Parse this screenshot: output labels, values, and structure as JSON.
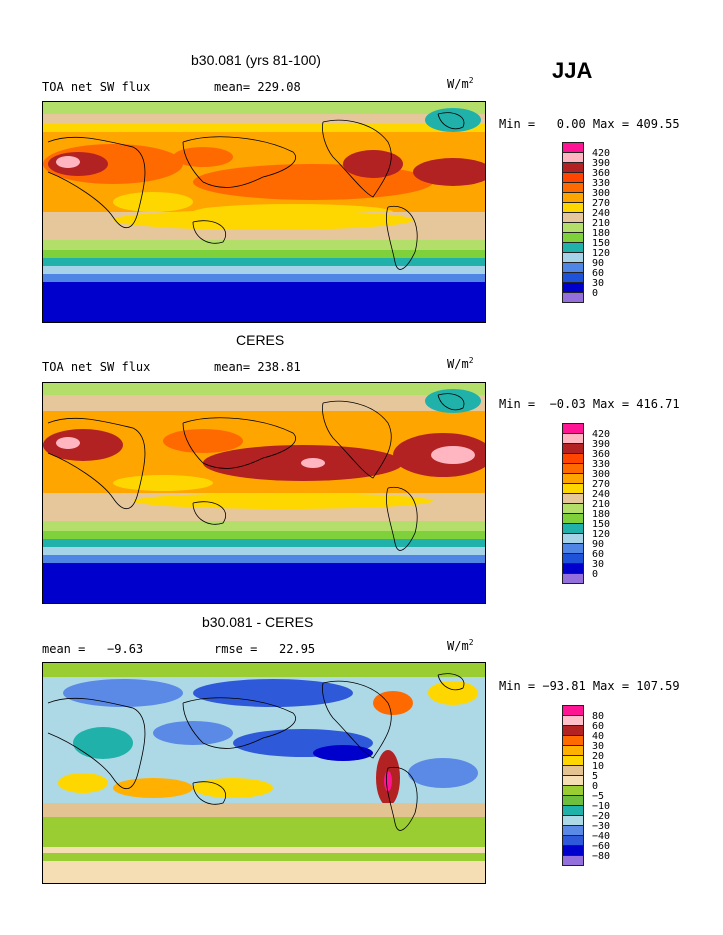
{
  "season": "JJA",
  "colors": {
    "absolute_scale": [
      "#9370db",
      "#0000cd",
      "#1e52d8",
      "#4f86e6",
      "#a6d3e8",
      "#20b2aa",
      "#7fd13b",
      "#b3de69",
      "#e6c79c",
      "#ffd700",
      "#ffa500",
      "#ff6a00",
      "#ff4500",
      "#b22222",
      "#ffb6c1",
      "#ff1493"
    ],
    "diff_scale": [
      "#9370db",
      "#0000cd",
      "#2e59d9",
      "#5a8ae6",
      "#add8e6",
      "#20b2aa",
      "#6fbf3f",
      "#9acd32",
      "#f5deb3",
      "#e3c391",
      "#ffd700",
      "#ffb000",
      "#ff6a00",
      "#b22222",
      "#ffc0cb",
      "#ff1493"
    ]
  },
  "panels": [
    {
      "title": "b30.081 (yrs 81-100)",
      "left_label": "TOA net SW flux",
      "mean_label": "mean= 229.08",
      "units": "W/m",
      "units_sup": "2",
      "minmax": "Min =   0.00 Max = 409.55",
      "colorbar_labels": [
        "420",
        "390",
        "360",
        "330",
        "300",
        "270",
        "240",
        "210",
        "180",
        "150",
        "120",
        "90",
        "60",
        "30",
        "0"
      ]
    },
    {
      "title": "CERES",
      "left_label": "TOA net SW flux",
      "mean_label": "mean= 238.81",
      "units": "W/m",
      "units_sup": "2",
      "minmax": "Min =  −0.03 Max = 416.71",
      "colorbar_labels": [
        "420",
        "390",
        "360",
        "330",
        "300",
        "270",
        "240",
        "210",
        "180",
        "150",
        "120",
        "90",
        "60",
        "30",
        "0"
      ]
    },
    {
      "title": "b30.081 - CERES",
      "left_label": "mean =   −9.63",
      "mean_label": "rmse =   22.95",
      "units": "W/m",
      "units_sup": "2",
      "minmax": "Min = −93.81 Max = 107.59",
      "colorbar_labels": [
        "80",
        "60",
        "40",
        "30",
        "20",
        "10",
        "5",
        "0",
        "−5",
        "−10",
        "−20",
        "−30",
        "−40",
        "−60",
        "−80"
      ]
    }
  ]
}
